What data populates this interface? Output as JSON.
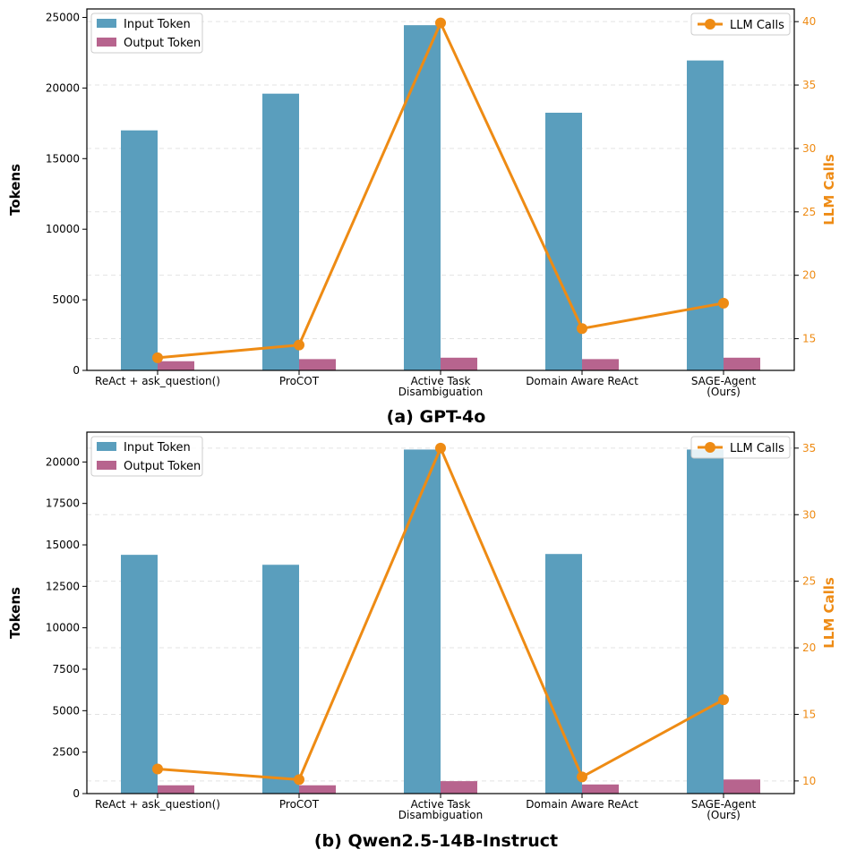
{
  "colors": {
    "input": "#5a9ebd",
    "output": "#b7648e",
    "line": "#ee8b14",
    "grid": "#e3e3e3"
  },
  "chart_data": [
    {
      "type": "bar+line",
      "title": "(a) GPT-4o",
      "ylabel": "Tokens",
      "y2label": "LLM Calls",
      "ylim": [
        0,
        25600
      ],
      "y2lim": [
        12.5,
        41.0
      ],
      "yticks": [
        0,
        5000,
        10000,
        15000,
        20000,
        25000
      ],
      "y2ticks": [
        15,
        20,
        25,
        30,
        35,
        40
      ],
      "categories": [
        [
          "ReAct + ask_question()"
        ],
        [
          "ProCOT"
        ],
        [
          "Active Task",
          "Disambiguation"
        ],
        [
          "Domain Aware ReAct"
        ],
        [
          "SAGE-Agent",
          "(Ours)"
        ]
      ],
      "series": [
        {
          "name": "Input Token",
          "kind": "bar",
          "values": [
            17000,
            19600,
            24450,
            18250,
            21950
          ]
        },
        {
          "name": "Output Token",
          "kind": "bar",
          "values": [
            650,
            800,
            900,
            800,
            900
          ]
        },
        {
          "name": "LLM Calls",
          "kind": "line",
          "axis": "right",
          "values": [
            13.5,
            14.5,
            39.9,
            15.8,
            17.8
          ]
        }
      ],
      "legend_left": [
        "Input Token",
        "Output Token"
      ],
      "legend_right": [
        "LLM Calls"
      ],
      "grid": true
    },
    {
      "type": "bar+line",
      "title": "(b) Qwen2.5-14B-Instruct",
      "ylabel": "Tokens",
      "y2label": "LLM Calls",
      "ylim": [
        0,
        21800
      ],
      "y2lim": [
        9.05,
        36.2
      ],
      "yticks": [
        0,
        2500,
        5000,
        7500,
        10000,
        12500,
        15000,
        17500,
        20000
      ],
      "y2ticks": [
        10,
        15,
        20,
        25,
        30,
        35
      ],
      "categories": [
        [
          "ReAct + ask_question()"
        ],
        [
          "ProCOT"
        ],
        [
          "Active Task",
          "Disambiguation"
        ],
        [
          "Domain Aware ReAct"
        ],
        [
          "SAGE-Agent",
          "(Ours)"
        ]
      ],
      "series": [
        {
          "name": "Input Token",
          "kind": "bar",
          "values": [
            14400,
            13800,
            20750,
            14450,
            20750
          ]
        },
        {
          "name": "Output Token",
          "kind": "bar",
          "values": [
            500,
            500,
            750,
            550,
            850
          ]
        },
        {
          "name": "LLM Calls",
          "kind": "line",
          "axis": "right",
          "values": [
            10.9,
            10.1,
            35.0,
            10.3,
            16.1
          ]
        }
      ],
      "legend_left": [
        "Input Token",
        "Output Token"
      ],
      "legend_right": [
        "LLM Calls"
      ],
      "grid": true
    }
  ]
}
